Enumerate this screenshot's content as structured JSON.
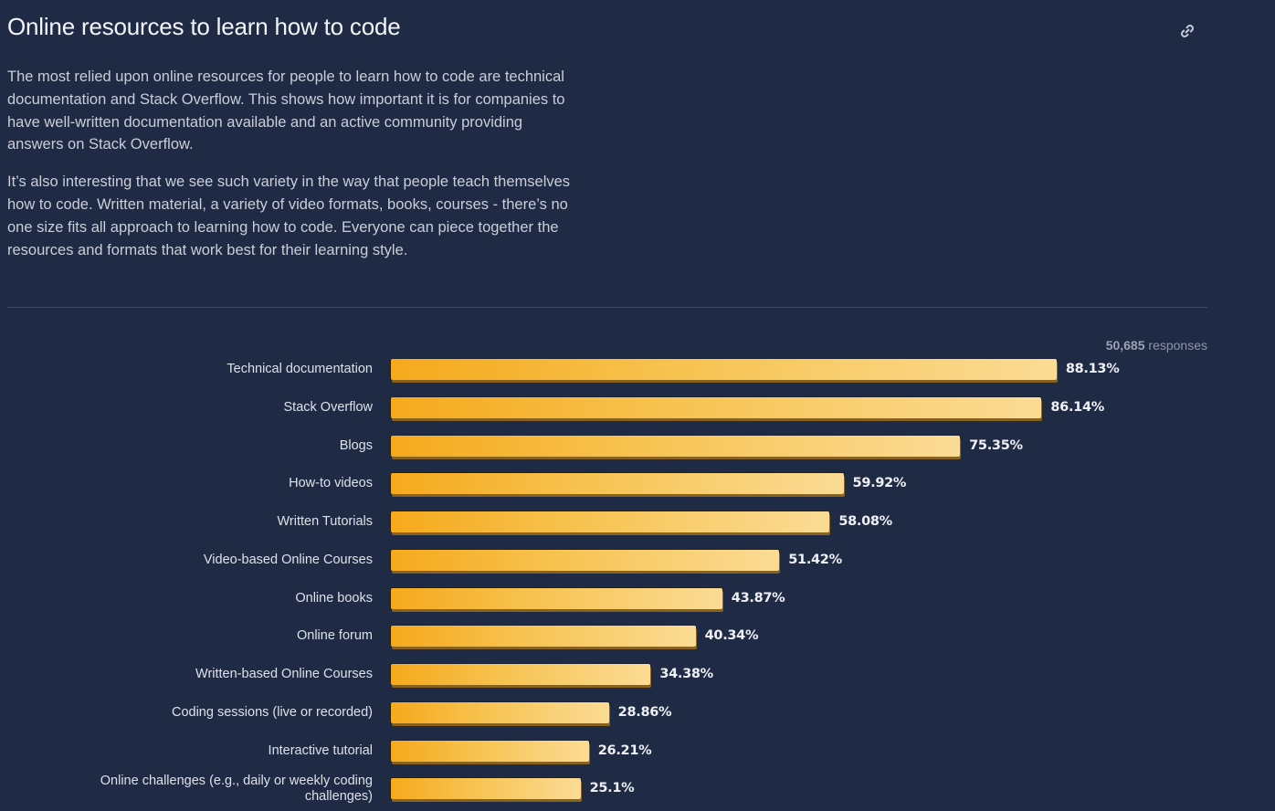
{
  "header": {
    "title": "Online resources to learn how to code",
    "link_icon": "link-icon"
  },
  "description": {
    "paragraphs": [
      "The most relied upon online resources for people to learn how to code are technical documentation and Stack Overflow. This shows how important it is for companies to have well-written documentation available and an active community providing answers on Stack Overflow.",
      "It’s also interesting that we see such variety in the way that people teach themselves how to code. Written material, a variety of video formats, books, courses - there’s no one size fits all approach to learning how to code. Everyone can piece together the resources and formats that work best for their learning style."
    ]
  },
  "responses": {
    "count": "50,685",
    "label": "responses"
  },
  "colors": {
    "bar_start": "#f6a91c",
    "bar_end": "#fbdb95",
    "background": "#1f2a44"
  },
  "chart_data": {
    "type": "bar",
    "orientation": "horizontal",
    "title": "Online resources to learn how to code",
    "xlabel": "",
    "ylabel": "",
    "xlim": [
      0,
      100
    ],
    "unit": "%",
    "grid": false,
    "categories": [
      "Technical documentation",
      "Stack Overflow",
      "Blogs",
      "How-to videos",
      "Written Tutorials",
      "Video-based Online Courses",
      "Online books",
      "Online forum",
      "Written-based Online Courses",
      "Coding sessions (live or recorded)",
      "Interactive tutorial",
      "Online challenges (e.g., daily or weekly coding challenges)"
    ],
    "values": [
      88.13,
      86.14,
      75.35,
      59.92,
      58.08,
      51.42,
      43.87,
      40.34,
      34.38,
      28.86,
      26.21,
      25.1
    ],
    "value_labels": [
      "88.13%",
      "86.14%",
      "75.35%",
      "59.92%",
      "58.08%",
      "51.42%",
      "43.87%",
      "40.34%",
      "34.38%",
      "28.86%",
      "26.21%",
      "25.1%"
    ]
  }
}
